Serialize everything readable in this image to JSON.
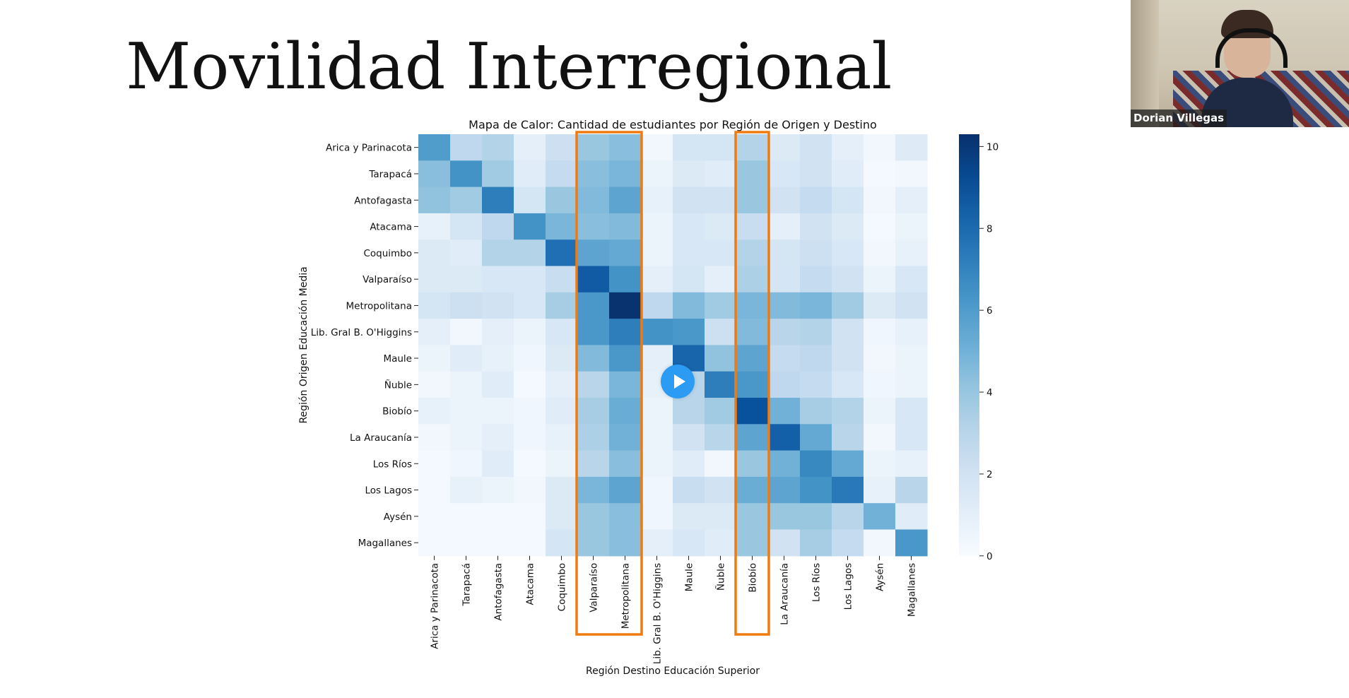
{
  "slide": {
    "title": "Movilidad Interregional"
  },
  "webcam": {
    "participant_name": "Dorian Villegas"
  },
  "video": {
    "play_icon": "play-icon"
  },
  "chart_data": {
    "type": "heatmap",
    "title": "Mapa de Calor: Cantidad de estudiantes por Región de Origen y Destino",
    "xlabel": "Región Destino Educación Superior",
    "ylabel": "Región Origen Educación Media",
    "rows": [
      "Arica y Parinacota",
      "Tarapacá",
      "Antofagasta",
      "Atacama",
      "Coquimbo",
      "Valparaíso",
      "Metropolitana",
      "Lib. Gral B. O'Higgins",
      "Maule",
      "Ñuble",
      "Biobío",
      "La Araucanía",
      "Los Ríos",
      "Los Lagos",
      "Aysén",
      "Magallanes"
    ],
    "columns": [
      "Arica y Parinacota",
      "Tarapacá",
      "Antofagasta",
      "Atacama",
      "Coquimbo",
      "Valparaíso",
      "Metropolitana",
      "Lib. Gral B. O'Higgins",
      "Maule",
      "Ñuble",
      "Biobío",
      "La Araucanía",
      "Los Ríos",
      "Los Lagos",
      "Aysén",
      "Magallanes"
    ],
    "values": [
      [
        6.0,
        2.8,
        3.2,
        1.0,
        2.2,
        4.0,
        4.4,
        0.3,
        1.8,
        1.8,
        3.2,
        1.4,
        2.0,
        1.0,
        0.3,
        1.3
      ],
      [
        4.4,
        6.4,
        3.8,
        1.2,
        2.6,
        4.4,
        4.8,
        0.6,
        1.4,
        1.2,
        4.0,
        1.6,
        2.0,
        1.2,
        0.2,
        0.3
      ],
      [
        4.2,
        3.8,
        7.2,
        1.8,
        4.0,
        4.6,
        5.6,
        0.8,
        2.0,
        2.0,
        4.0,
        2.0,
        2.6,
        1.8,
        0.3,
        1.0
      ],
      [
        0.8,
        1.8,
        2.8,
        6.4,
        4.8,
        4.4,
        4.6,
        0.6,
        1.6,
        1.4,
        2.4,
        1.0,
        2.0,
        1.4,
        0.2,
        0.6
      ],
      [
        1.4,
        1.2,
        3.2,
        3.2,
        7.8,
        5.6,
        5.4,
        0.6,
        1.6,
        1.6,
        3.2,
        1.8,
        2.2,
        1.6,
        0.3,
        0.8
      ],
      [
        1.4,
        1.4,
        1.6,
        1.6,
        2.4,
        8.6,
        6.4,
        1.0,
        1.8,
        1.0,
        3.4,
        1.8,
        2.6,
        2.0,
        0.6,
        1.6
      ],
      [
        1.8,
        2.2,
        2.0,
        1.6,
        3.6,
        6.2,
        10.2,
        2.8,
        4.6,
        3.8,
        4.8,
        4.6,
        4.8,
        3.8,
        1.4,
        2.0
      ],
      [
        1.0,
        0.3,
        1.0,
        0.6,
        1.6,
        6.2,
        7.2,
        6.4,
        6.2,
        2.2,
        4.6,
        3.0,
        3.2,
        2.0,
        0.4,
        0.8
      ],
      [
        0.6,
        1.2,
        0.8,
        0.4,
        1.4,
        4.6,
        6.2,
        1.0,
        8.2,
        4.2,
        5.6,
        2.6,
        2.8,
        2.0,
        0.3,
        0.6
      ],
      [
        0.3,
        0.6,
        1.2,
        0.2,
        1.0,
        3.0,
        4.8,
        0.8,
        3.0,
        7.2,
        6.2,
        2.8,
        2.6,
        1.6,
        0.4,
        0.6
      ],
      [
        0.8,
        0.6,
        0.6,
        0.4,
        1.2,
        3.6,
        5.2,
        0.6,
        3.0,
        3.8,
        9.0,
        5.0,
        3.6,
        3.2,
        0.6,
        1.6
      ],
      [
        0.3,
        0.6,
        1.0,
        0.4,
        0.8,
        3.4,
        5.0,
        0.6,
        2.0,
        3.0,
        5.6,
        8.4,
        5.4,
        3.0,
        0.3,
        1.6
      ],
      [
        0.2,
        0.4,
        1.2,
        0.2,
        0.6,
        3.0,
        4.4,
        0.6,
        1.2,
        0.3,
        4.0,
        5.0,
        6.8,
        5.4,
        0.6,
        0.8
      ],
      [
        0.2,
        0.8,
        0.6,
        0.3,
        1.4,
        4.8,
        5.6,
        0.4,
        2.4,
        2.0,
        5.2,
        5.6,
        6.4,
        7.4,
        0.8,
        3.0
      ],
      [
        0.2,
        0.2,
        0.2,
        0.2,
        1.4,
        4.0,
        4.4,
        0.4,
        1.4,
        1.4,
        4.0,
        4.0,
        4.0,
        3.0,
        5.0,
        1.2
      ],
      [
        0.2,
        0.2,
        0.2,
        0.2,
        1.8,
        4.0,
        4.4,
        1.0,
        1.6,
        1.2,
        4.0,
        2.0,
        3.6,
        2.6,
        0.3,
        6.2
      ]
    ],
    "colorbar": {
      "min": 0,
      "max": 10.3,
      "ticks": [
        0,
        2,
        4,
        6,
        8,
        10
      ],
      "colormap": "Blues"
    },
    "highlighted_columns": [
      "Valparaíso",
      "Metropolitana",
      "Biobío"
    ],
    "highlight_color": "#ef7b10"
  }
}
